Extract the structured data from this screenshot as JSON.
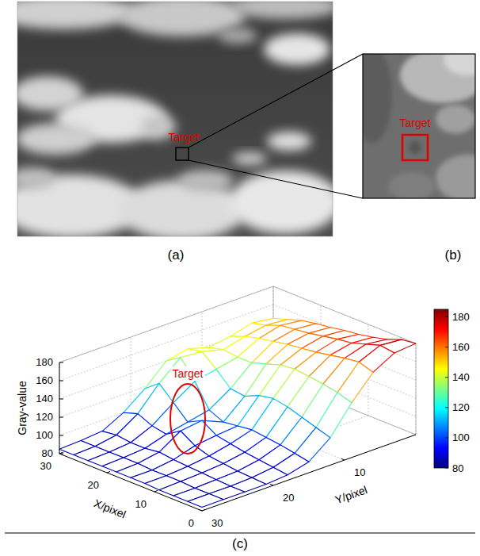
{
  "panels": [
    {
      "caption": "(a)",
      "annotation": "Target"
    },
    {
      "caption": "(b)",
      "annotation": "Target"
    }
  ],
  "chart_data": {
    "type": "surface",
    "caption": "(c)",
    "x": [
      0,
      3,
      6,
      9,
      12,
      15,
      18,
      21,
      24,
      27,
      30
    ],
    "y": [
      0,
      3,
      6,
      9,
      12,
      15,
      18,
      21,
      24,
      27,
      30
    ],
    "z": [
      [
        180,
        178,
        172,
        168,
        165,
        163,
        160,
        158,
        155,
        150,
        145
      ],
      [
        178,
        180,
        175,
        170,
        168,
        165,
        162,
        160,
        158,
        152,
        148
      ],
      [
        165,
        170,
        168,
        165,
        162,
        160,
        158,
        155,
        152,
        148,
        142
      ],
      [
        140,
        145,
        148,
        150,
        152,
        150,
        145,
        140,
        140,
        142,
        138
      ],
      [
        110,
        115,
        120,
        125,
        128,
        125,
        118,
        120,
        135,
        148,
        145
      ],
      [
        92,
        95,
        98,
        100,
        102,
        100,
        98,
        105,
        130,
        150,
        140
      ],
      [
        86,
        88,
        90,
        92,
        95,
        98,
        108,
        100,
        115,
        130,
        118
      ],
      [
        84,
        85,
        86,
        88,
        90,
        95,
        105,
        95,
        98,
        105,
        100
      ],
      [
        84,
        84,
        85,
        86,
        87,
        88,
        90,
        88,
        88,
        90,
        88
      ],
      [
        84,
        84,
        84,
        85,
        85,
        85,
        86,
        86,
        86,
        86,
        86
      ],
      [
        84,
        84,
        84,
        84,
        85,
        85,
        85,
        85,
        85,
        85,
        85
      ]
    ],
    "xlim": [
      0,
      30
    ],
    "ylim": [
      0,
      30
    ],
    "zlim": [
      80,
      180
    ],
    "xticks": [
      0,
      10,
      20,
      30
    ],
    "yticks": [
      10,
      20,
      30
    ],
    "zticks": [
      80,
      100,
      120,
      140,
      160,
      180
    ],
    "xlabel": "X/pixel",
    "ylabel": "Y/pixel",
    "zlabel": "Gray-value",
    "grid": true,
    "colorbar": {
      "range": [
        80,
        185
      ],
      "ticks": [
        80,
        100,
        120,
        140,
        160,
        180
      ]
    },
    "annotation": {
      "text": "Target"
    }
  }
}
